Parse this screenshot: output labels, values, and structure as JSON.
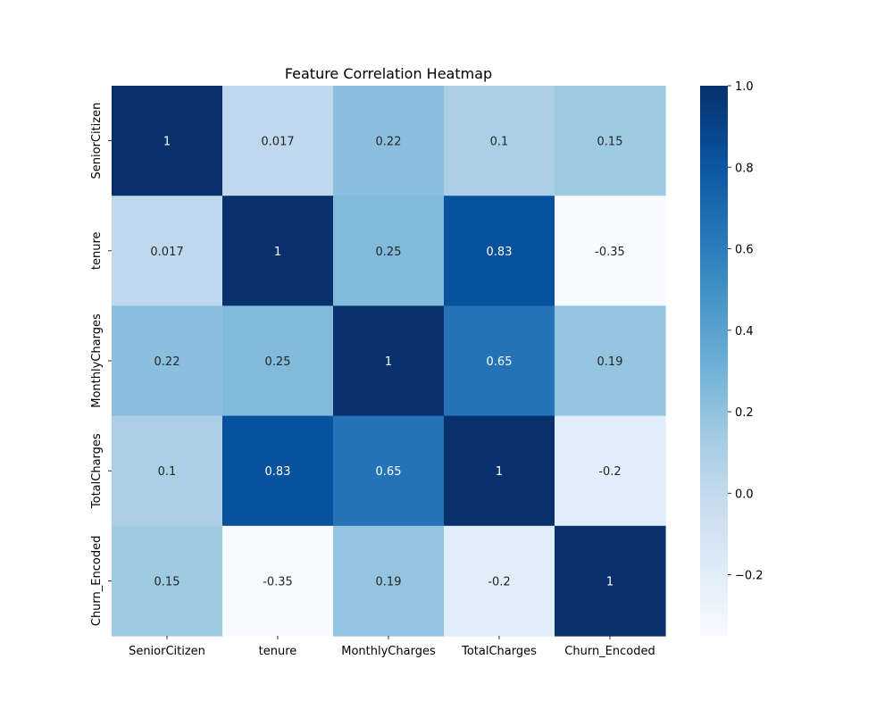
{
  "chart_data": {
    "type": "heatmap",
    "title": "Feature Correlation Heatmap",
    "xlabel": "",
    "ylabel": "",
    "x_categories": [
      "SeniorCitizen",
      "tenure",
      "MonthlyCharges",
      "TotalCharges",
      "Churn_Encoded"
    ],
    "y_categories": [
      "SeniorCitizen",
      "tenure",
      "MonthlyCharges",
      "TotalCharges",
      "Churn_Encoded"
    ],
    "values": [
      [
        1,
        0.017,
        0.22,
        0.1,
        0.15
      ],
      [
        0.017,
        1,
        0.25,
        0.83,
        -0.35
      ],
      [
        0.22,
        0.25,
        1,
        0.65,
        0.19
      ],
      [
        0.1,
        0.83,
        0.65,
        1,
        -0.2
      ],
      [
        0.15,
        -0.35,
        0.19,
        -0.2,
        1
      ]
    ],
    "value_labels": [
      [
        "1",
        "0.017",
        "0.22",
        "0.1",
        "0.15"
      ],
      [
        "0.017",
        "1",
        "0.25",
        "0.83",
        "-0.35"
      ],
      [
        "0.22",
        "0.25",
        "1",
        "0.65",
        "0.19"
      ],
      [
        "0.1",
        "0.83",
        "0.65",
        "1",
        "-0.2"
      ],
      [
        "0.15",
        "-0.35",
        "0.19",
        "-0.2",
        "1"
      ]
    ],
    "colormap": "Blues",
    "color_range": [
      -0.35,
      1.0
    ],
    "colorbar": {
      "ticks": [
        1.0,
        0.8,
        0.6,
        0.4,
        0.2,
        0.0,
        -0.2
      ],
      "tick_labels": [
        "1.0",
        "0.8",
        "0.6",
        "0.4",
        "0.2",
        "0.0",
        "−0.2"
      ]
    },
    "grid": false,
    "legend": "colorbar-right"
  }
}
